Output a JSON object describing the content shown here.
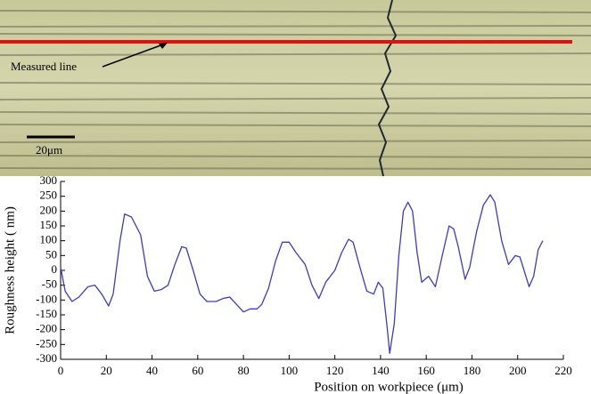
{
  "micrograph": {
    "annotation": "Measured line",
    "scale_bar": "20μm"
  },
  "chart_data": {
    "type": "line",
    "xlabel": "Position on workpiece (μm)",
    "ylabel": "Roughness height ( nm)",
    "x": [
      0,
      2,
      5,
      8,
      12,
      15,
      18,
      21,
      23,
      26,
      28,
      31,
      35,
      38,
      41,
      44,
      47,
      50,
      53,
      55,
      58,
      61,
      64,
      68,
      71,
      74,
      77,
      80,
      83,
      86,
      88,
      91,
      94,
      97,
      100,
      103,
      107,
      110,
      113,
      116,
      120,
      123,
      126,
      128,
      131,
      134,
      137,
      139,
      141,
      143,
      144,
      146,
      148,
      150,
      152,
      154,
      156,
      158,
      161,
      164,
      167,
      170,
      172,
      174,
      177,
      179,
      182,
      185,
      188,
      190,
      193,
      196,
      199,
      201,
      205,
      207,
      209,
      211
    ],
    "series": [
      {
        "color": "#3c3cc0",
        "values": [
          10,
          -70,
          -105,
          -90,
          -55,
          -50,
          -80,
          -120,
          -80,
          100,
          190,
          180,
          120,
          -20,
          -70,
          -65,
          -50,
          20,
          80,
          75,
          0,
          -80,
          -105,
          -105,
          -95,
          -90,
          -115,
          -140,
          -130,
          -130,
          -115,
          -60,
          30,
          95,
          95,
          60,
          20,
          -50,
          -95,
          -40,
          0,
          60,
          105,
          95,
          10,
          -70,
          -80,
          -40,
          -60,
          -200,
          -280,
          -180,
          50,
          200,
          230,
          200,
          60,
          -40,
          -20,
          -55,
          50,
          150,
          140,
          80,
          -30,
          10,
          130,
          220,
          255,
          230,
          100,
          20,
          50,
          45,
          -55,
          -20,
          70,
          100
        ]
      }
    ],
    "xlim": [
      0,
      220
    ],
    "xticks": [
      0,
      20,
      40,
      60,
      80,
      100,
      120,
      140,
      160,
      180,
      200,
      220
    ],
    "ylim": [
      -300,
      300
    ],
    "yticks": [
      -300,
      -250,
      -200,
      -150,
      -100,
      -50,
      0,
      50,
      100,
      150,
      200,
      250,
      300
    ]
  }
}
